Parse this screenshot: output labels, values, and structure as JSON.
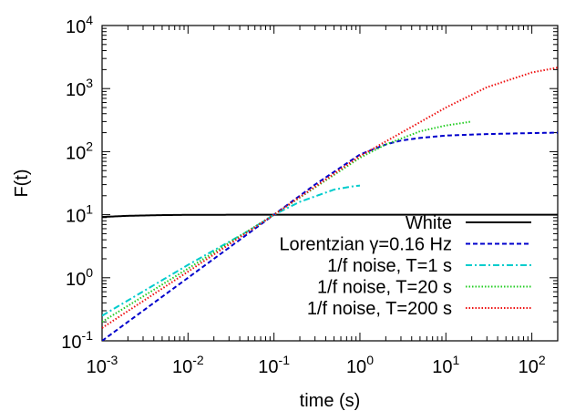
{
  "chart_data": {
    "type": "line",
    "xlabel": "time (s)",
    "ylabel": "F(t)",
    "xscale": "log",
    "yscale": "log",
    "xlim": [
      0.001,
      200
    ],
    "ylim": [
      0.1,
      10000
    ],
    "grid": false,
    "legend_position": "bottom-right",
    "x_ticks": [
      {
        "value": 0.001,
        "base": "10",
        "exp": "-3"
      },
      {
        "value": 0.01,
        "base": "10",
        "exp": "-2"
      },
      {
        "value": 0.1,
        "base": "10",
        "exp": "-1"
      },
      {
        "value": 1,
        "base": "10",
        "exp": "0"
      },
      {
        "value": 10,
        "base": "10",
        "exp": "1"
      },
      {
        "value": 100,
        "base": "10",
        "exp": "2"
      }
    ],
    "y_ticks": [
      {
        "value": 0.1,
        "base": "10",
        "exp": "-1"
      },
      {
        "value": 1,
        "base": "10",
        "exp": "0"
      },
      {
        "value": 10,
        "base": "10",
        "exp": "1"
      },
      {
        "value": 100,
        "base": "10",
        "exp": "2"
      },
      {
        "value": 1000,
        "base": "10",
        "exp": "3"
      },
      {
        "value": 10000,
        "base": "10",
        "exp": "4"
      }
    ],
    "series": [
      {
        "name": "White",
        "color": "#000000",
        "dash": "solid",
        "x": [
          0.001,
          0.002,
          0.005,
          0.01,
          0.1,
          1,
          10,
          100,
          200
        ],
        "y": [
          9.2,
          9.6,
          9.85,
          9.95,
          10,
          10,
          10,
          10,
          10
        ]
      },
      {
        "name": "Lorentzian γ=0.16 Hz",
        "color": "#0000cc",
        "dash": "dashed",
        "x": [
          0.001,
          0.01,
          0.1,
          0.3,
          1,
          2,
          3,
          5,
          10,
          30,
          100,
          200
        ],
        "y": [
          0.1,
          1,
          10,
          30,
          90,
          130,
          150,
          165,
          180,
          190,
          197,
          200
        ]
      },
      {
        "name": "1/f noise, T=1 s",
        "color": "#00cccc",
        "dash": "dashdot",
        "x": [
          0.001,
          0.01,
          0.05,
          0.1,
          0.2,
          0.5,
          0.8,
          1
        ],
        "y": [
          0.25,
          1.6,
          5.5,
          10,
          16,
          25,
          28,
          29
        ]
      },
      {
        "name": "1/f noise, T=20 s",
        "color": "#22cc22",
        "dash": "dotted",
        "x": [
          0.001,
          0.01,
          0.1,
          1,
          2,
          5,
          10,
          20
        ],
        "y": [
          0.2,
          1.4,
          10,
          80,
          130,
          210,
          260,
          300
        ]
      },
      {
        "name": "1/f noise, T=200 s",
        "color": "#ee1111",
        "dash": "dotted",
        "x": [
          0.001,
          0.01,
          0.1,
          1,
          10,
          30,
          100,
          200
        ],
        "y": [
          0.16,
          1.25,
          10,
          85,
          500,
          1050,
          1800,
          2150
        ]
      }
    ]
  }
}
